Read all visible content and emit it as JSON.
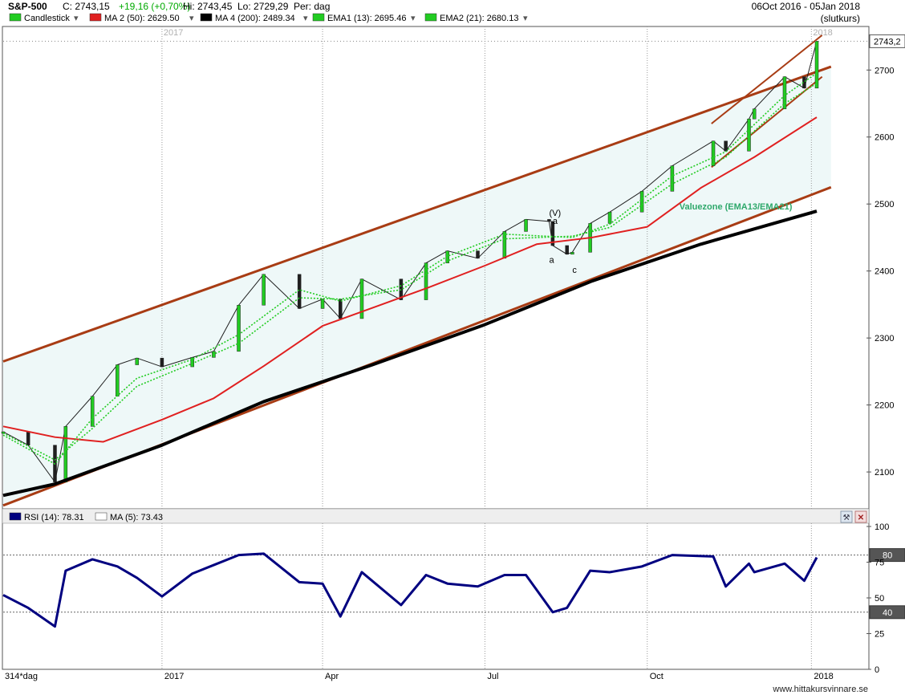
{
  "header": {
    "symbol": "S&P-500",
    "close": "C: 2743,15",
    "change": "+19,16 (+0,70%)",
    "high": "Hi: 2743,45",
    "low": "Lo: 2729,29",
    "period": "Per: dag",
    "date_range": "06Oct 2016 - 05Jan 2018",
    "price_basis": "(slutkurs)"
  },
  "legend": [
    {
      "label": "Candlestick",
      "color": "#22cc22"
    },
    {
      "label": "MA 2 (50): 2629.50",
      "color": "#e02020"
    },
    {
      "label": "MA 4 (200): 2489.34",
      "color": "#000000"
    },
    {
      "label": "EMA1 (13): 2695.46",
      "color": "#22cc22"
    },
    {
      "label": "EMA2 (21): 2680.13",
      "color": "#22cc22"
    }
  ],
  "rsi_legend": [
    {
      "label": "RSI (14): 78.31",
      "color": "#000080"
    },
    {
      "label": "MA (5): 73.43",
      "color": "#ffffff"
    }
  ],
  "footer": {
    "bars": "314*dag",
    "watermark": "www.hittakursvinnare.se"
  },
  "chart_data": [
    {
      "type": "line",
      "title": "S&P-500",
      "price_label": "2743,2",
      "x_ticks": [
        "2017",
        "Apr",
        "Jul",
        "Oct",
        "2018"
      ],
      "x_tick_dates": [
        "2017-01-03",
        "2017-04-03",
        "2017-07-03",
        "2017-10-02",
        "2018-01-02"
      ],
      "period_labels": [
        "2017",
        "2018"
      ],
      "ylim": [
        2045,
        2765
      ],
      "y_ticks": [
        2100,
        2200,
        2300,
        2400,
        2500,
        2600,
        2700
      ],
      "annotations": [
        {
          "text": "(V)",
          "date": "2017-08-08",
          "y": 2482
        },
        {
          "text": "a",
          "date": "2017-08-10",
          "y": 2470
        },
        {
          "text": "a",
          "date": "2017-08-08",
          "y": 2412
        },
        {
          "text": "c",
          "date": "2017-08-21",
          "y": 2397
        },
        {
          "text": "Valuezone (EMA13/EMA21)",
          "date": "2017-10-20",
          "y": 2492
        }
      ],
      "series": [
        {
          "name": "S&P-500",
          "type": "candlestick",
          "color": "#22cc22",
          "x": [
            "2016-10-06",
            "2016-10-20",
            "2016-11-04",
            "2016-11-10",
            "2016-11-25",
            "2016-12-09",
            "2016-12-20",
            "2017-01-03",
            "2017-01-20",
            "2017-02-01",
            "2017-02-15",
            "2017-03-01",
            "2017-03-21",
            "2017-04-03",
            "2017-04-13",
            "2017-04-25",
            "2017-05-17",
            "2017-05-31",
            "2017-06-12",
            "2017-06-29",
            "2017-07-14",
            "2017-07-26",
            "2017-08-08",
            "2017-08-10",
            "2017-08-18",
            "2017-08-21",
            "2017-08-31",
            "2017-09-11",
            "2017-09-29",
            "2017-10-16",
            "2017-11-08",
            "2017-11-15",
            "2017-11-28",
            "2017-12-01",
            "2017-12-18",
            "2017-12-29",
            "2018-01-05"
          ],
          "values": [
            2160,
            2140,
            2085,
            2168,
            2213,
            2260,
            2270,
            2257,
            2271,
            2280,
            2349,
            2395,
            2344,
            2358,
            2329,
            2388,
            2357,
            2412,
            2430,
            2419,
            2459,
            2477,
            2474,
            2438,
            2425,
            2428,
            2471,
            2488,
            2519,
            2557,
            2594,
            2579,
            2627,
            2642,
            2690,
            2673,
            2743
          ]
        },
        {
          "name": "MA 2 (50)",
          "color": "#e02020",
          "x": [
            "2016-10-06",
            "2016-11-04",
            "2016-12-01",
            "2017-01-03",
            "2017-02-01",
            "2017-03-01",
            "2017-04-03",
            "2017-05-01",
            "2017-06-01",
            "2017-07-03",
            "2017-08-01",
            "2017-09-01",
            "2017-10-02",
            "2017-11-01",
            "2017-12-01",
            "2018-01-05"
          ],
          "values": [
            2168,
            2152,
            2145,
            2178,
            2210,
            2258,
            2318,
            2345,
            2375,
            2408,
            2440,
            2450,
            2466,
            2524,
            2570,
            2629.5
          ]
        },
        {
          "name": "MA 4 (200)",
          "color": "#000000",
          "x": [
            "2016-10-06",
            "2016-11-04",
            "2017-01-03",
            "2017-03-01",
            "2017-05-01",
            "2017-07-03",
            "2017-09-01",
            "2017-11-01",
            "2018-01-05"
          ],
          "values": [
            2065,
            2082,
            2140,
            2205,
            2260,
            2320,
            2385,
            2440,
            2489.34
          ]
        },
        {
          "name": "EMA1 (13)",
          "color": "#22cc22",
          "x": [
            "2016-10-06",
            "2016-11-04",
            "2016-11-25",
            "2016-12-20",
            "2017-01-20",
            "2017-02-15",
            "2017-03-21",
            "2017-04-13",
            "2017-05-17",
            "2017-06-12",
            "2017-07-14",
            "2017-08-21",
            "2017-09-11",
            "2017-10-16",
            "2017-11-15",
            "2017-12-18",
            "2018-01-05"
          ],
          "values": [
            2155,
            2112,
            2180,
            2240,
            2268,
            2305,
            2372,
            2355,
            2378,
            2422,
            2455,
            2450,
            2470,
            2542,
            2578,
            2662,
            2695.46
          ]
        },
        {
          "name": "EMA2 (21)",
          "color": "#22cc22",
          "x": [
            "2016-10-06",
            "2016-11-04",
            "2016-11-25",
            "2016-12-20",
            "2017-01-20",
            "2017-02-15",
            "2017-03-21",
            "2017-04-13",
            "2017-05-17",
            "2017-06-12",
            "2017-07-14",
            "2017-08-21",
            "2017-09-11",
            "2017-10-16",
            "2017-11-15",
            "2017-12-18",
            "2018-01-05"
          ],
          "values": [
            2158,
            2118,
            2165,
            2228,
            2262,
            2292,
            2360,
            2358,
            2372,
            2415,
            2448,
            2452,
            2465,
            2530,
            2570,
            2650,
            2680.13
          ]
        }
      ],
      "trendlines": [
        {
          "name": "channel-upper",
          "color": "#a83c14",
          "x": [
            "2016-10-06",
            "2018-01-13"
          ],
          "y": [
            2265,
            2705
          ]
        },
        {
          "name": "channel-lower",
          "color": "#a83c14",
          "x": [
            "2016-10-06",
            "2018-01-13"
          ],
          "y": [
            2050,
            2525
          ]
        },
        {
          "name": "wedge-upper",
          "color": "#a83c14",
          "x": [
            "2017-11-07",
            "2018-01-08"
          ],
          "y": [
            2620,
            2752
          ]
        },
        {
          "name": "wedge-lower",
          "color": "#a83c14",
          "x": [
            "2017-11-07",
            "2018-01-08"
          ],
          "y": [
            2555,
            2690
          ]
        }
      ]
    },
    {
      "type": "line",
      "title": "RSI (14)",
      "ylim": [
        0,
        100
      ],
      "y_ticks": [
        0,
        25,
        50,
        75,
        100
      ],
      "levels": [
        80,
        40
      ],
      "series": [
        {
          "name": "RSI (14)",
          "color": "#000080",
          "x": [
            "2016-10-06",
            "2016-10-20",
            "2016-11-04",
            "2016-11-10",
            "2016-11-25",
            "2016-12-09",
            "2016-12-20",
            "2017-01-03",
            "2017-01-20",
            "2017-02-01",
            "2017-02-15",
            "2017-03-01",
            "2017-03-21",
            "2017-04-03",
            "2017-04-13",
            "2017-04-25",
            "2017-05-17",
            "2017-05-31",
            "2017-06-12",
            "2017-06-29",
            "2017-07-14",
            "2017-07-26",
            "2017-08-10",
            "2017-08-18",
            "2017-08-31",
            "2017-09-11",
            "2017-09-29",
            "2017-10-16",
            "2017-11-08",
            "2017-11-15",
            "2017-11-28",
            "2017-12-01",
            "2017-12-18",
            "2017-12-29",
            "2018-01-05"
          ],
          "values": [
            52,
            43,
            30,
            69,
            77,
            72,
            64,
            51,
            67,
            73,
            80,
            81,
            61,
            60,
            37,
            68,
            45,
            66,
            60,
            58,
            66,
            66,
            40,
            43,
            69,
            68,
            72,
            80,
            79,
            58,
            74,
            68,
            74,
            62,
            78.31
          ]
        }
      ]
    }
  ]
}
